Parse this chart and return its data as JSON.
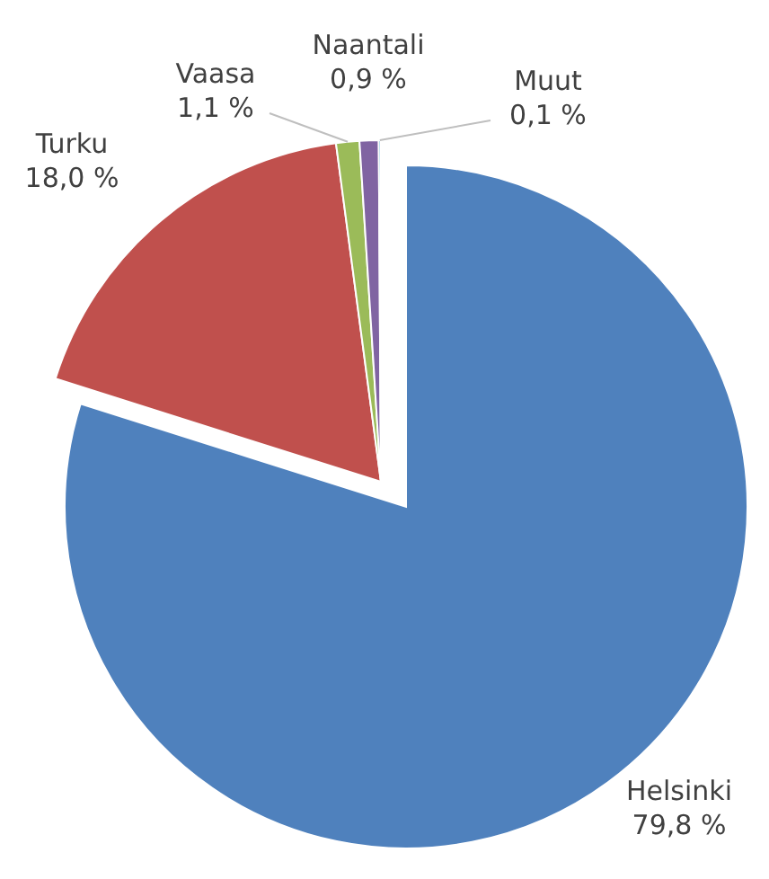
{
  "chart_data": {
    "type": "pie",
    "categories": [
      "Helsinki",
      "Turku",
      "Vaasa",
      "Naantali",
      "Muut"
    ],
    "values": [
      79.8,
      18.0,
      1.1,
      0.9,
      0.1
    ],
    "colors": [
      "#4f81bd",
      "#c0504d",
      "#9bbb59",
      "#8064a2",
      "#4bacc6"
    ],
    "value_labels": [
      "79,8 %",
      "18,0 %",
      "1,1 %",
      "0,9 %",
      "0,1 %"
    ]
  }
}
